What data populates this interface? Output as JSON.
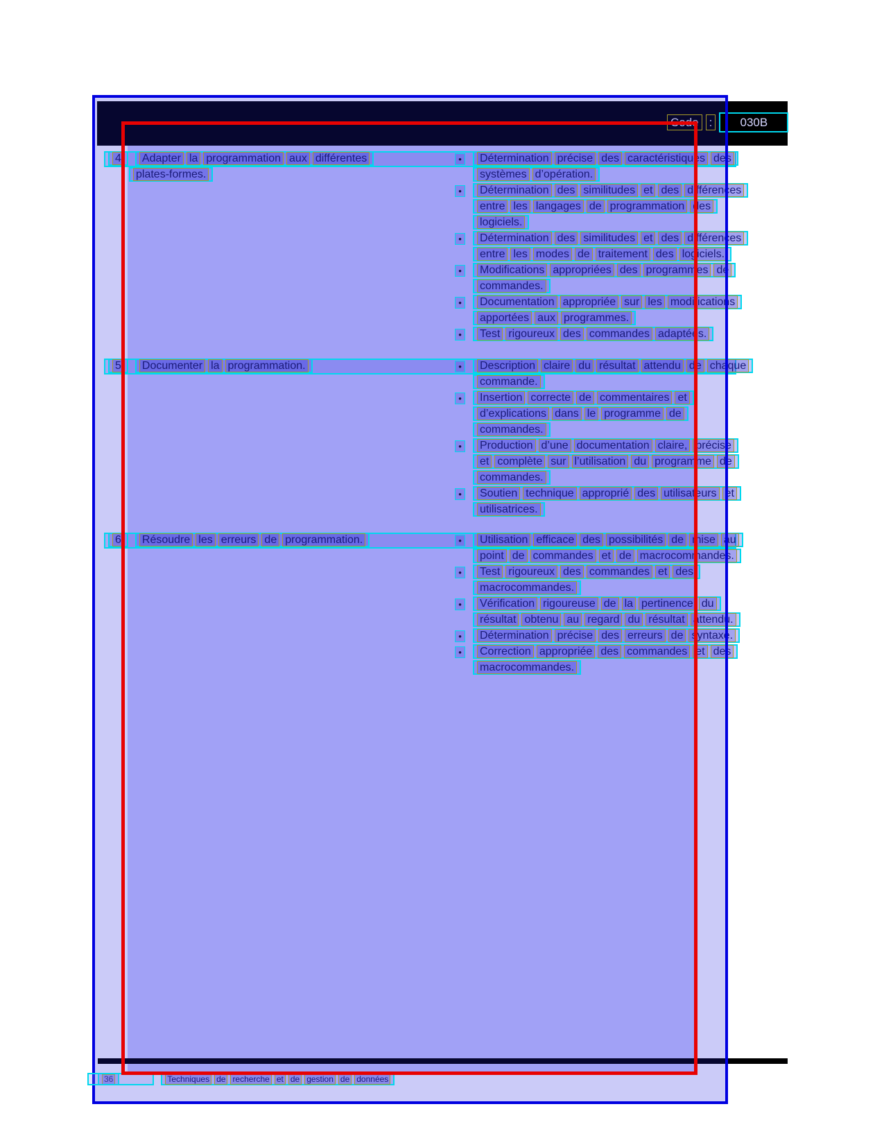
{
  "header": {
    "code_label": "Code",
    "separator": ":",
    "code_value": "030B"
  },
  "sections": [
    {
      "number": "4",
      "title_lines": [
        "Adapter la programmation aux différentes",
        "plates-formes."
      ],
      "bullets": [
        {
          "lines": [
            "Détermination précise des caractéristiques des",
            "systèmes d’opération."
          ]
        },
        {
          "lines": [
            "Détermination des similitudes et des différences",
            "entre les langages de programmation des",
            "logiciels."
          ]
        },
        {
          "lines": [
            "Détermination des similitudes et des différences",
            "entre les modes de traitement des logiciels."
          ]
        },
        {
          "lines": [
            "Modifications appropriées des programmes de",
            "commandes."
          ]
        },
        {
          "lines": [
            "Documentation appropriée sur les modifications",
            "apportées aux programmes."
          ]
        },
        {
          "lines": [
            "Test rigoureux des commandes adaptées."
          ]
        }
      ]
    },
    {
      "number": "5",
      "title_lines": [
        "Documenter la programmation."
      ],
      "bullets": [
        {
          "lines": [
            "Description claire du résultat attendu de chaque",
            "commande."
          ]
        },
        {
          "lines": [
            "Insertion correcte de commentaires et",
            "d’explications dans le programme de",
            "commandes."
          ]
        },
        {
          "lines": [
            "Production d’une documentation claire, précise",
            "et complète sur l’utilisation du programme de",
            "commandes."
          ]
        },
        {
          "lines": [
            "Soutien technique approprié des utilisateurs et",
            "utilisatrices."
          ]
        }
      ]
    },
    {
      "number": "6",
      "title_lines": [
        "Résoudre les erreurs de programmation."
      ],
      "bullets": [
        {
          "lines": [
            "Utilisation efficace des possibilités de mise au",
            "point de commandes et de macrocommandes."
          ]
        },
        {
          "lines": [
            "Test rigoureux des commandes et des",
            "macrocommandes."
          ]
        },
        {
          "lines": [
            "Vérification rigoureuse de la pertinence du",
            "résultat obtenu au regard du résultat attendu."
          ]
        },
        {
          "lines": [
            "Détermination précise des erreurs de syntaxe."
          ]
        },
        {
          "lines": [
            "Correction appropriée des commandes et des",
            "macrocommandes."
          ]
        }
      ]
    }
  ],
  "footer": {
    "page_number": "36",
    "text": "Techniques de recherche et de gestion de données"
  },
  "colors": {
    "page_lavender": "#cbcbf8",
    "content_region_blue": "#a1a1f6",
    "line_box_cyan": "#00d8ee",
    "word_box_yellow": "#a89b28",
    "highlight_red": "#e80202",
    "page_border_blue": "#0000e0",
    "header_navy": "#06062f",
    "text_navy": "#1b1b78"
  }
}
